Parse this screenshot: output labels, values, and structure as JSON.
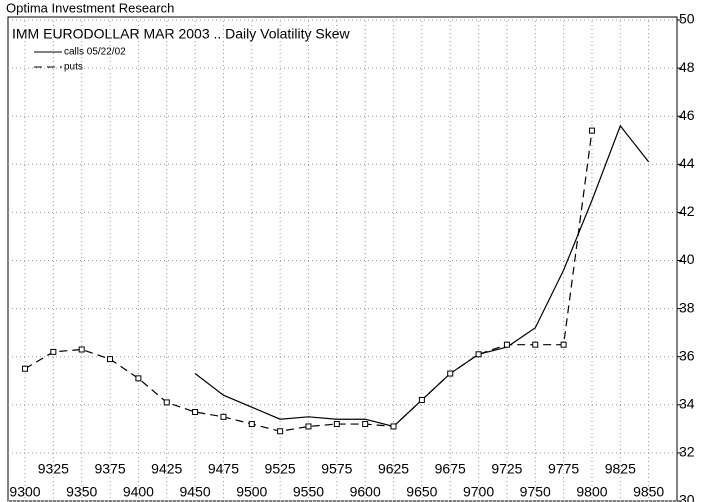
{
  "header": {
    "title": "Optima Investment Research"
  },
  "chart_data": {
    "type": "line",
    "title": "IMM EURODOLLAR MAR 2003 .. Daily Volatility Skew",
    "x": [
      9300,
      9325,
      9350,
      9375,
      9400,
      9425,
      9450,
      9475,
      9500,
      9525,
      9550,
      9575,
      9600,
      9625,
      9650,
      9675,
      9700,
      9725,
      9750,
      9775,
      9800,
      9825,
      9850
    ],
    "series": [
      {
        "name": "calls 05/22/02",
        "color": "#000000",
        "dashed": false,
        "markers": false,
        "values": [
          null,
          null,
          null,
          null,
          null,
          null,
          35.3,
          34.4,
          33.9,
          33.4,
          33.5,
          33.4,
          33.4,
          33.1,
          34.2,
          35.3,
          36.1,
          36.4,
          37.2,
          39.6,
          42.5,
          45.6,
          44.1
        ]
      },
      {
        "name": "puts",
        "color": "#000000",
        "dashed": true,
        "markers": true,
        "values": [
          35.5,
          36.2,
          36.3,
          35.9,
          35.1,
          34.1,
          33.7,
          33.5,
          33.2,
          32.9,
          33.1,
          33.2,
          33.2,
          33.1,
          34.2,
          35.3,
          36.1,
          36.5,
          36.5,
          36.5,
          45.4,
          null,
          null
        ]
      }
    ],
    "xlim": [
      9285,
      9875
    ],
    "xticks": [
      9300,
      9325,
      9350,
      9375,
      9400,
      9425,
      9450,
      9475,
      9500,
      9525,
      9550,
      9575,
      9600,
      9625,
      9650,
      9675,
      9700,
      9725,
      9750,
      9775,
      9800,
      9825,
      9850
    ],
    "ylim": [
      30,
      50
    ],
    "yticks": [
      30,
      32,
      34,
      36,
      38,
      40,
      42,
      44,
      46,
      48,
      50
    ],
    "grid": true
  }
}
